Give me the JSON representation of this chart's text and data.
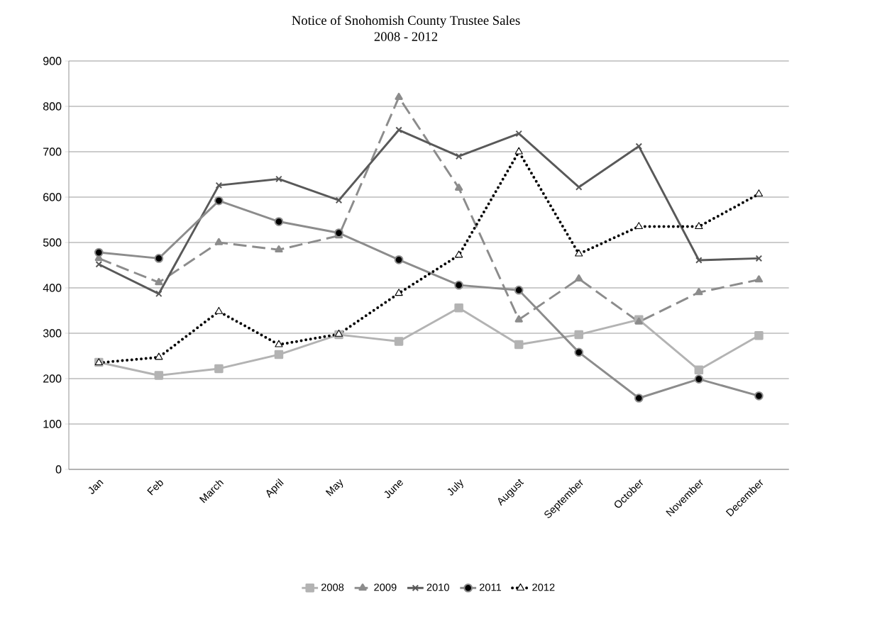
{
  "chart_data": {
    "type": "line",
    "title": "Notice of Snohomish County Trustee Sales",
    "subtitle": "2008 - 2012",
    "categories": [
      "Jan",
      "Feb",
      "March",
      "April",
      "May",
      "June",
      "July",
      "August",
      "September",
      "October",
      "November",
      "December"
    ],
    "series": [
      {
        "name": "2008",
        "color": "#b3b3b3",
        "marker": "square",
        "line_style": "solid",
        "values": [
          236,
          207,
          222,
          253,
          297,
          282,
          356,
          275,
          297,
          330,
          219,
          295
        ]
      },
      {
        "name": "2009",
        "color": "#8c8c8c",
        "marker": "triangle",
        "line_style": "dashed",
        "values": [
          465,
          412,
          500,
          484,
          515,
          820,
          620,
          330,
          420,
          325,
          390,
          418
        ]
      },
      {
        "name": "2010",
        "color": "#595959",
        "marker": "cross",
        "line_style": "solid",
        "values": [
          452,
          387,
          626,
          640,
          593,
          748,
          690,
          740,
          622,
          712,
          461,
          465
        ]
      },
      {
        "name": "2011",
        "color": "#8c8c8c",
        "marker": "circle",
        "line_style": "solid",
        "values": [
          478,
          465,
          592,
          546,
          521,
          462,
          406,
          395,
          258,
          157,
          199,
          162
        ]
      },
      {
        "name": "2012",
        "color": "#000000",
        "marker": "triangle",
        "line_style": "dotted",
        "values": [
          235,
          247,
          348,
          275,
          298,
          388,
          472,
          700,
          475,
          535,
          535,
          607
        ]
      }
    ],
    "ylim": [
      0,
      900
    ],
    "yticks": [
      0,
      100,
      200,
      300,
      400,
      500,
      600,
      700,
      800,
      900
    ],
    "grid": "y",
    "legend": "bottom"
  }
}
